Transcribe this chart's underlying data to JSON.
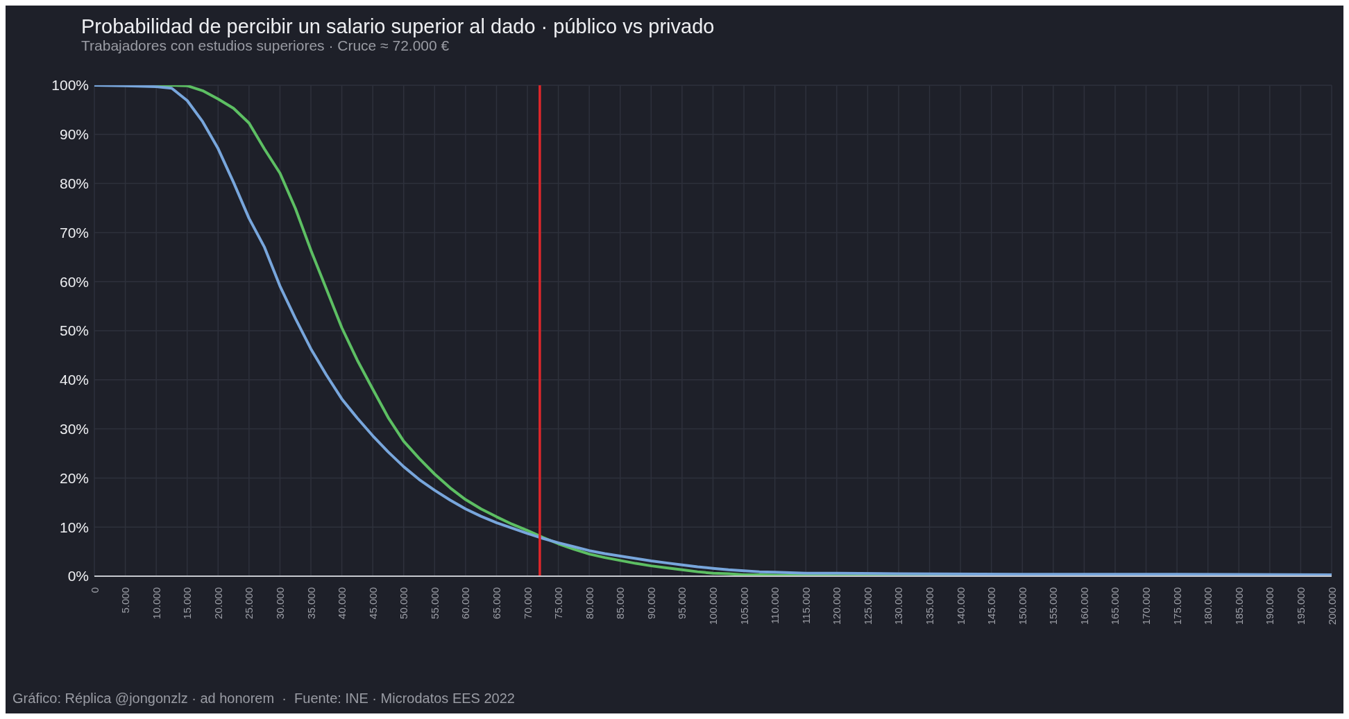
{
  "chart_data": {
    "type": "line",
    "title": "Probabilidad de percibir un salario superior al dado · público vs privado",
    "subtitle": "Trabajadores con estudios superiores · Cruce ≈ 72.000 €",
    "annotations": [
      "Gráfico: Réplica @jongonzlz · ad honorem  ·  Fuente: INE · Microdatos EES 2022"
    ],
    "x": [
      0,
      5000,
      10000,
      12500,
      15000,
      17500,
      20000,
      22500,
      25000,
      27500,
      30000,
      32500,
      35000,
      37500,
      40000,
      42500,
      45000,
      47500,
      50000,
      52500,
      55000,
      57500,
      60000,
      62500,
      65000,
      67500,
      70000,
      72500,
      75000,
      77500,
      80000,
      82500,
      85000,
      87500,
      90000,
      92500,
      95000,
      97500,
      100000,
      102500,
      105000,
      107500,
      110000,
      115000,
      120000,
      130000,
      150000,
      175000,
      200000
    ],
    "series": [
      {
        "color": "#5dbf63",
        "values": [
          100,
          100,
          100,
          100,
          99.9,
          98.9,
          97.2,
          95.3,
          92.3,
          87,
          82.1,
          74.9,
          66.4,
          58.5,
          50.6,
          44,
          38.1,
          32.3,
          27.5,
          24,
          20.8,
          18,
          15.6,
          13.7,
          12.1,
          10.6,
          9.3,
          7.9,
          6.6,
          5.5,
          4.5,
          3.8,
          3.2,
          2.6,
          2.1,
          1.7,
          1.3,
          0.9,
          0.6,
          0.5,
          0.3,
          0.3,
          0.2,
          0.2,
          0.1,
          0.1,
          0.1,
          null,
          null
        ]
      },
      {
        "color": "#78a6dc",
        "values": [
          100,
          99.9,
          99.7,
          99.4,
          96.9,
          92.6,
          87.1,
          80.2,
          72.9,
          67,
          59.1,
          52.5,
          46.3,
          41,
          36.1,
          32.2,
          28.6,
          25.3,
          22.3,
          19.7,
          17.5,
          15.5,
          13.7,
          12.2,
          10.9,
          9.8,
          8.7,
          7.7,
          6.8,
          6,
          5.2,
          4.6,
          4.1,
          3.6,
          3.1,
          2.7,
          2.3,
          1.9,
          1.6,
          1.3,
          1.1,
          0.9,
          0.8,
          0.6,
          0.6,
          0.5,
          0.4,
          0.4,
          0.3
        ]
      }
    ],
    "xlim": [
      0,
      200000
    ],
    "xticks": [
      {
        "value": 0,
        "label": "0"
      },
      {
        "value": 5000,
        "label": "5.000"
      },
      {
        "value": 10000,
        "label": "10.000"
      },
      {
        "value": 15000,
        "label": "15.000"
      },
      {
        "value": 20000,
        "label": "20.000"
      },
      {
        "value": 25000,
        "label": "25.000"
      },
      {
        "value": 30000,
        "label": "30.000"
      },
      {
        "value": 35000,
        "label": "35.000"
      },
      {
        "value": 40000,
        "label": "40.000"
      },
      {
        "value": 45000,
        "label": "45.000"
      },
      {
        "value": 50000,
        "label": "50.000"
      },
      {
        "value": 55000,
        "label": "55.000"
      },
      {
        "value": 60000,
        "label": "60.000"
      },
      {
        "value": 65000,
        "label": "65.000"
      },
      {
        "value": 70000,
        "label": "70.000"
      },
      {
        "value": 75000,
        "label": "75.000"
      },
      {
        "value": 80000,
        "label": "80.000"
      },
      {
        "value": 85000,
        "label": "85.000"
      },
      {
        "value": 90000,
        "label": "90.000"
      },
      {
        "value": 95000,
        "label": "95.000"
      },
      {
        "value": 100000,
        "label": "100.000"
      },
      {
        "value": 105000,
        "label": "105.000"
      },
      {
        "value": 110000,
        "label": "110.000"
      },
      {
        "value": 115000,
        "label": "115.000"
      },
      {
        "value": 120000,
        "label": "120.000"
      },
      {
        "value": 125000,
        "label": "125.000"
      },
      {
        "value": 130000,
        "label": "130.000"
      },
      {
        "value": 135000,
        "label": "135.000"
      },
      {
        "value": 140000,
        "label": "140.000"
      },
      {
        "value": 145000,
        "label": "145.000"
      },
      {
        "value": 150000,
        "label": "150.000"
      },
      {
        "value": 155000,
        "label": "155.000"
      },
      {
        "value": 160000,
        "label": "160.000"
      },
      {
        "value": 165000,
        "label": "165.000"
      },
      {
        "value": 170000,
        "label": "170.000"
      },
      {
        "value": 175000,
        "label": "175.000"
      },
      {
        "value": 180000,
        "label": "180.000"
      },
      {
        "value": 185000,
        "label": "185.000"
      },
      {
        "value": 190000,
        "label": "190.000"
      },
      {
        "value": 195000,
        "label": "195.000"
      },
      {
        "value": 200000,
        "label": "200.000"
      }
    ],
    "ylim": [
      0,
      100
    ],
    "yticks": [
      {
        "value": 0,
        "label": "0%"
      },
      {
        "value": 10,
        "label": "10%"
      },
      {
        "value": 20,
        "label": "20%"
      },
      {
        "value": 30,
        "label": "30%"
      },
      {
        "value": 40,
        "label": "40%"
      },
      {
        "value": 50,
        "label": "50%"
      },
      {
        "value": 60,
        "label": "60%"
      },
      {
        "value": 70,
        "label": "70%"
      },
      {
        "value": 80,
        "label": "80%"
      },
      {
        "value": 90,
        "label": "90%"
      },
      {
        "value": 100,
        "label": "100%"
      }
    ],
    "ref_lines": [
      {
        "axis": "x",
        "value": 72000,
        "color": "#e0262a"
      }
    ],
    "grid": true,
    "line_style": "solid"
  }
}
